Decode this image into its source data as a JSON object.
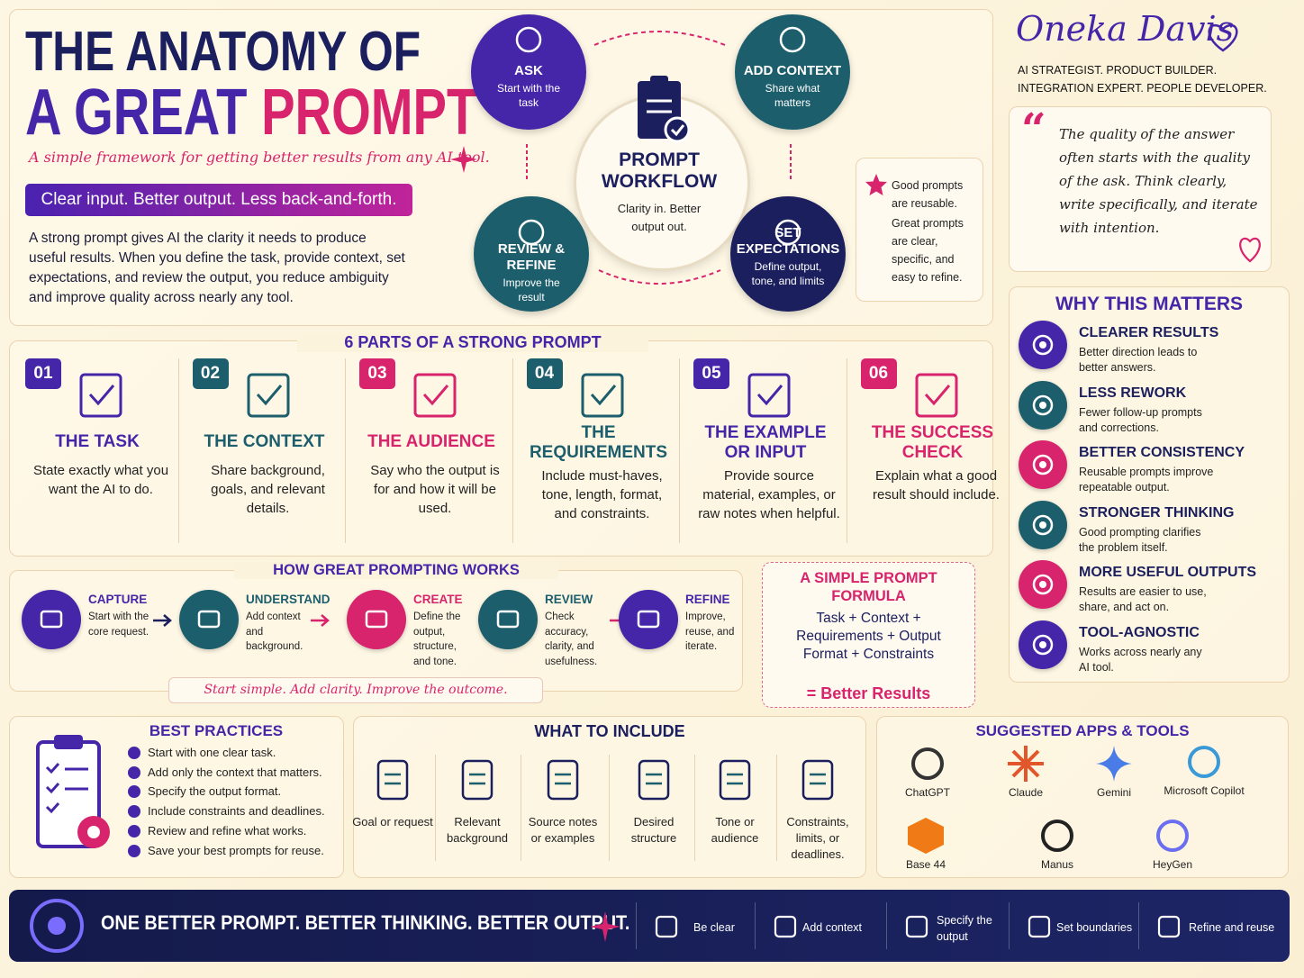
{
  "header": {
    "title_line1": "THE ANATOMY OF",
    "title_line2a": "A GREAT",
    "title_line2b": "PROMPT",
    "subtitle": "A simple framework for getting better results from any AI tool.",
    "tagline": "Clear input. Better output. Less back-and-forth.",
    "intro": "A strong prompt gives AI the clarity it needs to produce useful results. When you define the task, provide context, set expectations, and review the output, you reduce ambiguity and improve quality across nearly any tool."
  },
  "workflow": {
    "center_title": "PROMPT WORKFLOW",
    "center_text": "Clarity in. Better output out.",
    "steps": [
      {
        "title": "ASK",
        "text": "Start with the task"
      },
      {
        "title": "ADD CONTEXT",
        "text": "Share what matters"
      },
      {
        "title": "SET EXPECTATIONS",
        "text": "Define output, tone, and limits"
      },
      {
        "title": "REVIEW & REFINE",
        "text": "Improve the result"
      }
    ]
  },
  "note": {
    "lines": [
      "Good prompts are reusable.",
      "Great prompts are clear, specific, and easy to refine."
    ]
  },
  "author": {
    "name": "Oneka Davis",
    "roles": "AI STRATEGIST. PRODUCT BUILDER. INTEGRATION EXPERT. PEOPLE DEVELOPER.",
    "quote": "The quality of the answer often starts with the quality of the ask. Think clearly, write specifically, and iterate with intention."
  },
  "why": {
    "title": "WHY THIS MATTERS",
    "items": [
      {
        "title": "CLEARER RESULTS",
        "text": "Better direction leads to better answers."
      },
      {
        "title": "LESS REWORK",
        "text": "Fewer follow-up prompts and corrections."
      },
      {
        "title": "BETTER CONSISTENCY",
        "text": "Reusable prompts improve repeatable output."
      },
      {
        "title": "STRONGER THINKING",
        "text": "Good prompting clarifies the problem itself."
      },
      {
        "title": "MORE USEFUL OUTPUTS",
        "text": "Results are easier to use, share, and act on."
      },
      {
        "title": "TOOL-AGNOSTIC",
        "text": "Works across nearly any AI tool."
      }
    ]
  },
  "parts": {
    "title": "6 PARTS OF A STRONG PROMPT",
    "items": [
      {
        "number": "01",
        "title": "THE TASK",
        "text": "State exactly what you want the AI to do."
      },
      {
        "number": "02",
        "title": "THE CONTEXT",
        "text": "Share background, goals, and relevant details."
      },
      {
        "number": "03",
        "title": "THE AUDIENCE",
        "text": "Say who the output is for and how it will be used."
      },
      {
        "number": "04",
        "title": "THE REQUIREMENTS",
        "text": "Include must-haves, tone, length, format, and constraints."
      },
      {
        "number": "05",
        "title": "THE EXAMPLE OR INPUT",
        "text": "Provide source material, examples, or raw notes when helpful."
      },
      {
        "number": "06",
        "title": "THE SUCCESS CHECK",
        "text": "Explain what a good result should include."
      }
    ]
  },
  "how": {
    "title": "HOW GREAT PROMPTING WORKS",
    "steps": [
      {
        "title": "CAPTURE",
        "text": "Start with the core request."
      },
      {
        "title": "UNDERSTAND",
        "text": "Add context and background."
      },
      {
        "title": "CREATE",
        "text": "Define the output, structure, and tone."
      },
      {
        "title": "REVIEW",
        "text": "Check accuracy, clarity, and usefulness."
      },
      {
        "title": "REFINE",
        "text": "Improve, reuse, and iterate."
      }
    ],
    "footer": "Start simple. Add clarity. Improve the outcome."
  },
  "formula": {
    "title": "A SIMPLE PROMPT FORMULA",
    "text": "Task + Context + Requirements + Output Format + Constraints",
    "result": "= Better Results"
  },
  "best_practices": {
    "title": "BEST PRACTICES",
    "items": [
      "Start with one clear task.",
      "Add only the context that matters.",
      "Specify the output format.",
      "Include constraints and deadlines.",
      "Review and refine what works.",
      "Save your best prompts for reuse."
    ]
  },
  "include": {
    "title": "WHAT TO INCLUDE",
    "items": [
      "Goal or request",
      "Relevant background",
      "Source notes or examples",
      "Desired structure",
      "Tone or audience",
      "Constraints, limits, or deadlines."
    ]
  },
  "apps": {
    "title": "SUGGESTED APPS & TOOLS",
    "items": [
      "ChatGPT",
      "Claude",
      "Gemini",
      "Microsoft Copilot",
      "Base 44",
      "Manus",
      "HeyGen"
    ]
  },
  "banner": {
    "text": "ONE BETTER PROMPT. BETTER THINKING. BETTER OUTPUT.",
    "items": [
      "Be clear",
      "Add context",
      "Specify the output",
      "Set boundaries",
      "Refine and reuse"
    ]
  }
}
